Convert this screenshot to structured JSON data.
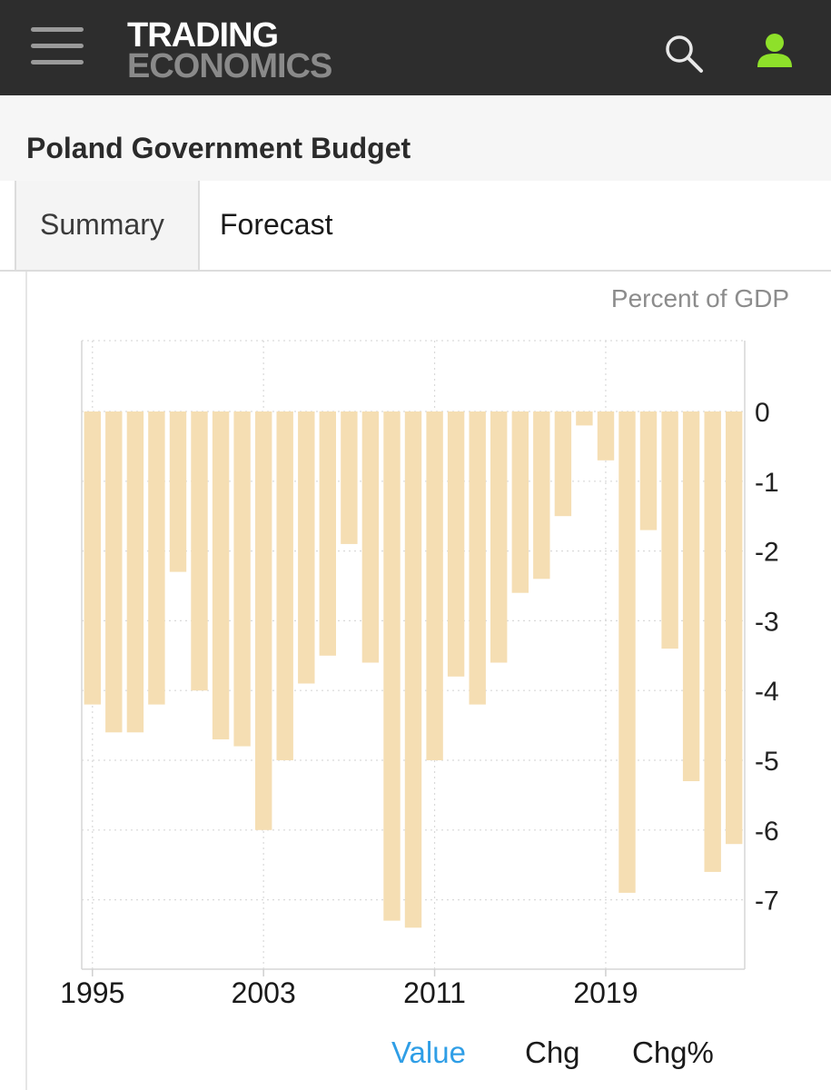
{
  "header": {
    "logo_line1": "TRADING",
    "logo_line2": "ECONOMICS",
    "menu_icon": "hamburger-menu-icon",
    "search_icon": "search-icon",
    "user_icon": "user-icon",
    "user_icon_color": "#8ee02a"
  },
  "page": {
    "title": "Poland Government Budget"
  },
  "tabs": [
    {
      "label": "Summary"
    },
    {
      "label": "Forecast"
    }
  ],
  "series_tabs": {
    "value": "Value",
    "chg": "Chg",
    "chg_pct": "Chg%",
    "active": "Value",
    "active_color": "#2f9ee6"
  },
  "chart_data": {
    "type": "bar",
    "unit_label": "Percent of GDP",
    "bar_color": "#f5deb3",
    "x": [
      1995,
      1996,
      1997,
      1998,
      1999,
      2000,
      2001,
      2002,
      2003,
      2004,
      2005,
      2006,
      2007,
      2008,
      2009,
      2010,
      2011,
      2012,
      2013,
      2014,
      2015,
      2016,
      2017,
      2018,
      2019,
      2020,
      2021,
      2022,
      2023,
      2024,
      2025
    ],
    "values": [
      -4.2,
      -4.6,
      -4.6,
      -4.2,
      -2.3,
      -4.0,
      -4.7,
      -4.8,
      -6.0,
      -5.0,
      -3.9,
      -3.5,
      -1.9,
      -3.6,
      -7.3,
      -7.4,
      -5.0,
      -3.8,
      -4.2,
      -3.6,
      -2.6,
      -2.4,
      -1.5,
      -0.2,
      -0.7,
      -6.9,
      -1.7,
      -3.4,
      -5.3,
      -6.6,
      -6.2
    ],
    "x_ticks": [
      "1995",
      "2003",
      "2011",
      "2019"
    ],
    "y_ticks": [
      "0",
      "-1",
      "-2",
      "-3",
      "-4",
      "-5",
      "-6",
      "-7"
    ],
    "ylim": [
      -8,
      1
    ],
    "grid": true,
    "y_axis_side": "right"
  }
}
